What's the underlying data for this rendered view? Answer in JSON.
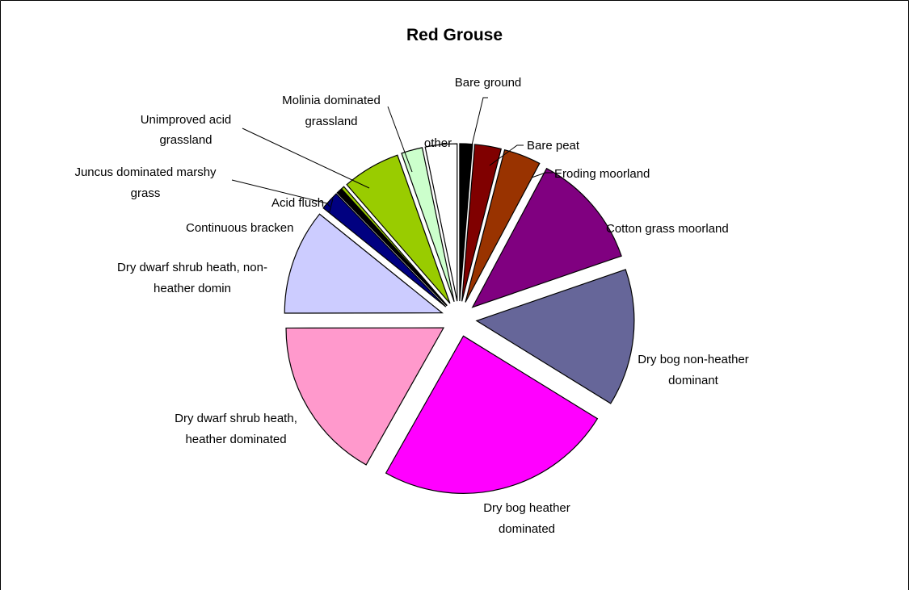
{
  "chart_data": {
    "type": "pie",
    "title": "Red Grouse",
    "exploded": true,
    "start_angle_deg": 0,
    "direction": "clockwise",
    "slices": [
      {
        "label": "Bare ground",
        "value": 1.2,
        "color": "#000000"
      },
      {
        "label": "Bare peat",
        "value": 2.5,
        "color": "#800000"
      },
      {
        "label": "Eroding moorland",
        "value": 3.5,
        "color": "#993300"
      },
      {
        "label": "Cotton grass moorland",
        "value": 11.0,
        "color": "#800080"
      },
      {
        "label": "Dry bog non-heather dominant",
        "value": 13.0,
        "color": "#666699"
      },
      {
        "label": "Dry bog heather dominated",
        "value": 22.5,
        "color": "#FF00FF"
      },
      {
        "label": "Dry dwarf shrub heath, heather dominated",
        "value": 15.5,
        "color": "#FF99CC"
      },
      {
        "label": "Dry dwarf shrub heath, non-heather domin",
        "value": 10.0,
        "color": "#CCCCFF"
      },
      {
        "label": "Continuous bracken",
        "value": 1.8,
        "color": "#000080"
      },
      {
        "label": "Acid flush",
        "value": 0.5,
        "color": "#000000"
      },
      {
        "label": "Juncus dominated marshy grass",
        "value": 0.3,
        "color": "#99CC00"
      },
      {
        "label": "Unimproved acid grassland",
        "value": 5.5,
        "color": "#99CC00"
      },
      {
        "label": "Molinia dominated grassland",
        "value": 2.0,
        "color": "#CCFFCC"
      },
      {
        "label": "other",
        "value": 3.0,
        "color": "#FFFFFF"
      }
    ]
  },
  "labels": {
    "bare_ground": "Bare ground",
    "bare_peat": "Bare peat",
    "eroding": "Eroding moorland",
    "cotton": "Cotton grass moorland",
    "drybog_nh_1": "Dry bog non-heather",
    "drybog_nh_2": "dominant",
    "drybog_h_1": "Dry bog heather",
    "drybog_h_2": "dominated",
    "dwarf_h_1": "Dry dwarf shrub heath,",
    "dwarf_h_2": "heather dominated",
    "dwarf_nh_1": "Dry dwarf shrub heath, non-",
    "dwarf_nh_2": "heather domin",
    "bracken": "Continuous bracken",
    "acid_flush": "Acid flush",
    "juncus_1": "Juncus dominated marshy",
    "juncus_2": "grass",
    "unimproved_1": "Unimproved acid",
    "unimproved_2": "grassland",
    "molinia_1": "Molinia dominated",
    "molinia_2": "grassland",
    "other": "other"
  }
}
